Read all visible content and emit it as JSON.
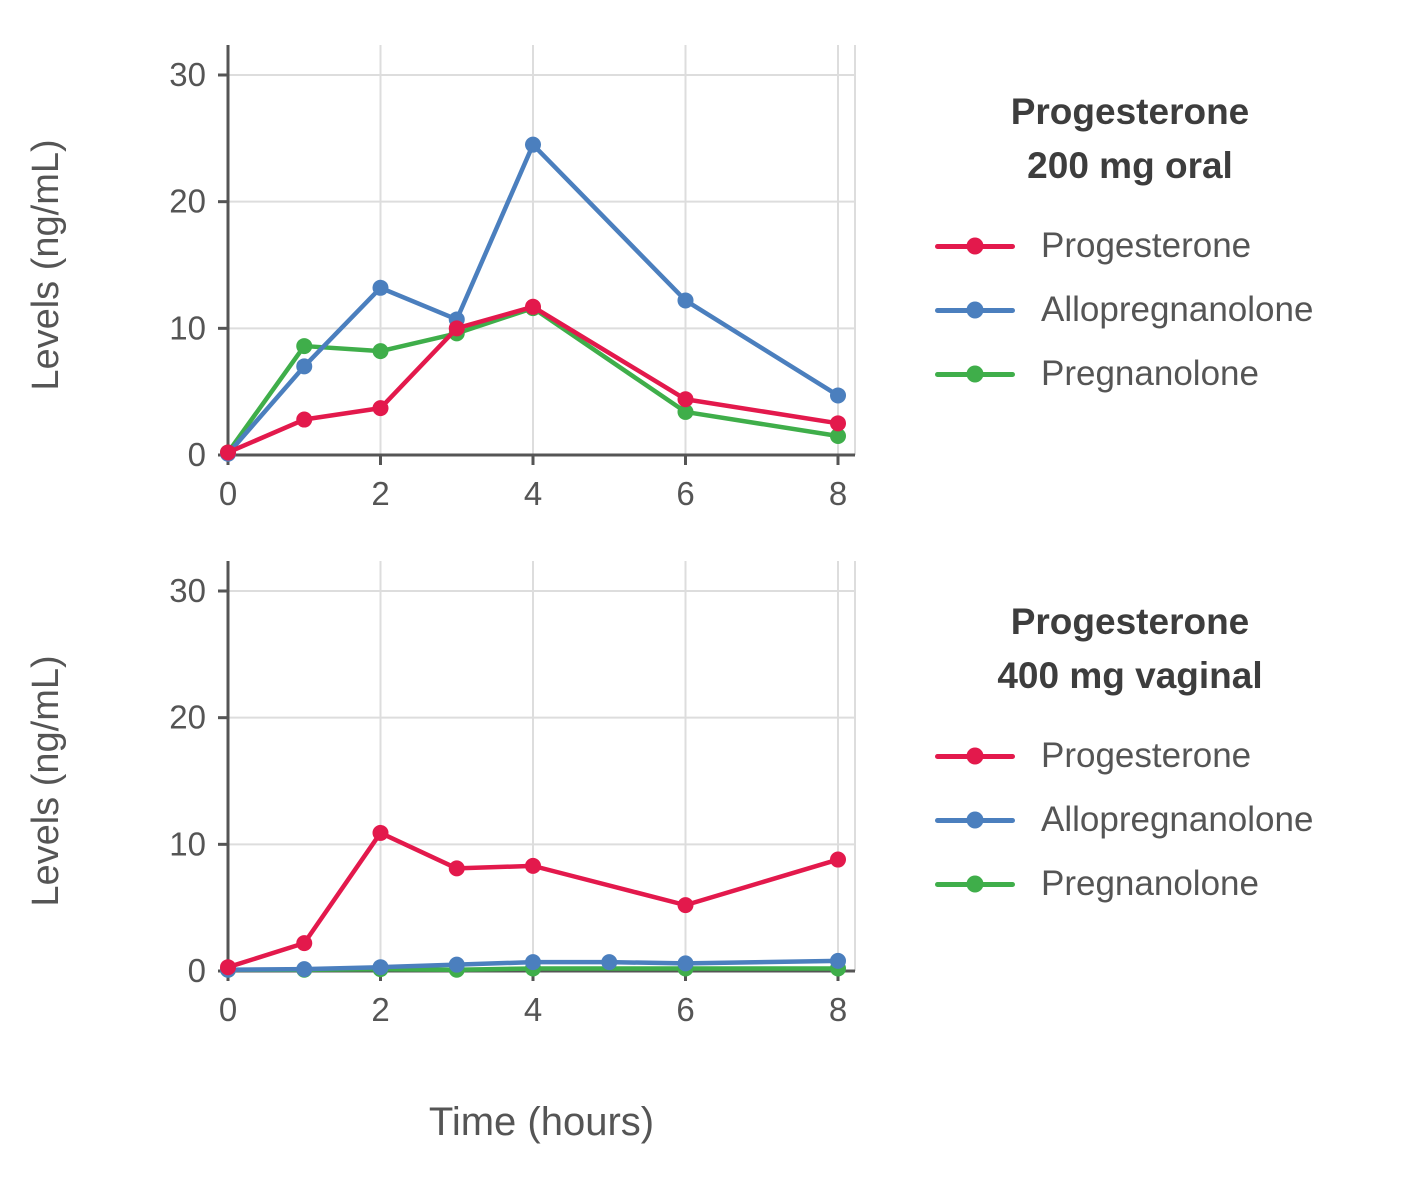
{
  "xlabel": "Time (hours)",
  "colors": {
    "progesterone": "#e3194c",
    "allopregnanolone": "#4b7fbe",
    "pregnanolone": "#3fae4a",
    "axis": "#555555",
    "grid": "#dddddd",
    "title_text": "#3d3d3d"
  },
  "chart_data": [
    {
      "type": "line",
      "title_line1": "Progesterone",
      "title_line2": "200 mg oral",
      "ylabel": "Levels (ng/mL)",
      "xlabel": "Time (hours)",
      "xlim": [
        0,
        8
      ],
      "ylim": [
        0,
        30
      ],
      "xticks": [
        0,
        2,
        4,
        6,
        8
      ],
      "yticks": [
        0,
        10,
        20,
        30
      ],
      "legend_position": "right",
      "grid": true,
      "series": [
        {
          "name": "Progesterone",
          "color": "#e3194c",
          "x": [
            0,
            1,
            2,
            3,
            4,
            6,
            8
          ],
          "values": [
            0.2,
            2.8,
            3.7,
            10.0,
            11.7,
            4.4,
            2.5
          ]
        },
        {
          "name": "Allopregnanolone",
          "color": "#4b7fbe",
          "x": [
            0,
            1,
            2,
            3,
            4,
            6,
            8
          ],
          "values": [
            0.1,
            7.0,
            13.2,
            10.7,
            24.5,
            12.2,
            4.7
          ]
        },
        {
          "name": "Pregnanolone",
          "color": "#3fae4a",
          "x": [
            0,
            1,
            2,
            3,
            4,
            6,
            8
          ],
          "values": [
            0.2,
            8.6,
            8.2,
            9.6,
            11.6,
            3.4,
            1.5
          ]
        }
      ]
    },
    {
      "type": "line",
      "title_line1": "Progesterone",
      "title_line2": "400 mg vaginal",
      "ylabel": "Levels (ng/mL)",
      "xlabel": "Time (hours)",
      "xlim": [
        0,
        8
      ],
      "ylim": [
        0,
        30
      ],
      "xticks": [
        0,
        2,
        4,
        6,
        8
      ],
      "yticks": [
        0,
        10,
        20,
        30
      ],
      "legend_position": "right",
      "grid": true,
      "series": [
        {
          "name": "Progesterone",
          "color": "#e3194c",
          "x": [
            0,
            1,
            2,
            3,
            4,
            6,
            8
          ],
          "values": [
            0.3,
            2.2,
            10.9,
            8.1,
            8.3,
            5.2,
            8.8
          ]
        },
        {
          "name": "Allopregnanolone",
          "color": "#4b7fbe",
          "x": [
            0,
            1,
            2,
            3,
            4,
            5,
            6,
            8
          ],
          "values": [
            0.1,
            0.15,
            0.3,
            0.5,
            0.7,
            0.7,
            0.6,
            0.8
          ]
        },
        {
          "name": "Pregnanolone",
          "color": "#3fae4a",
          "x": [
            0,
            1,
            2,
            3,
            4,
            6,
            8
          ],
          "values": [
            0.1,
            0.1,
            0.15,
            0.1,
            0.2,
            0.2,
            0.2
          ]
        }
      ]
    }
  ]
}
